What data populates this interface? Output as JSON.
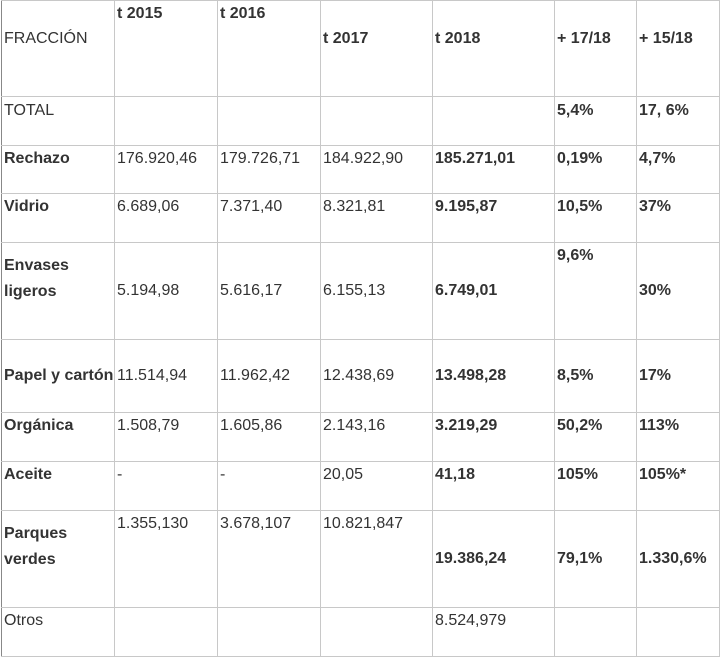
{
  "table": {
    "headers": [
      "FRACCIÓN",
      "t 2015",
      "t 2016",
      "t 2017",
      "t 2018",
      "+ 17/18",
      "+ 15/18"
    ],
    "rows": [
      {
        "name": "TOTAL",
        "c2015": "",
        "c2016": "",
        "c2017": "",
        "c2018": "",
        "v1718": "5,4%",
        "v1518": "17, 6%"
      },
      {
        "name": "Rechazo",
        "c2015": "176.920,46",
        "c2016": "179.726,71",
        "c2017": "184.922,90",
        "c2018": "185.271,01",
        "v1718": "0,19%",
        "v1518": "4,7%"
      },
      {
        "name": "Vidrio",
        "c2015": "6.689,06",
        "c2016": "7.371,40",
        "c2017": "8.321,81",
        "c2018": "9.195,87",
        "v1718": "10,5%",
        "v1518": "37%"
      },
      {
        "name": "Envases ligeros",
        "c2015": "5.194,98",
        "c2016": "5.616,17",
        "c2017": "6.155,13",
        "c2018": "6.749,01",
        "v1718": "9,6%",
        "v1518": "30%"
      },
      {
        "name": "Papel y cartón",
        "c2015": "11.514,94",
        "c2016": "11.962,42",
        "c2017": "12.438,69",
        "c2018": "13.498,28",
        "v1718": "8,5%",
        "v1518": "17%"
      },
      {
        "name": "Orgánica",
        "c2015": "1.508,79",
        "c2016": "1.605,86",
        "c2017": "2.143,16",
        "c2018": "3.219,29",
        "v1718": "50,2%",
        "v1518": "113%"
      },
      {
        "name": "Aceite",
        "c2015": "-",
        "c2016": "-",
        "c2017": "20,05",
        "c2018": "41,18",
        "v1718": "105%",
        "v1518": "105%*"
      },
      {
        "name": "Parques verdes",
        "c2015": "1.355,130",
        "c2016": "3.678,107",
        "c2017": "10.821,847",
        "c2018": "19.386,24",
        "v1718": "79,1%",
        "v1518": "1.330,6%"
      },
      {
        "name": "Otros",
        "c2015": "",
        "c2016": "",
        "c2017": "",
        "c2018": "8.524,979",
        "v1718": "",
        "v1518": ""
      }
    ]
  }
}
